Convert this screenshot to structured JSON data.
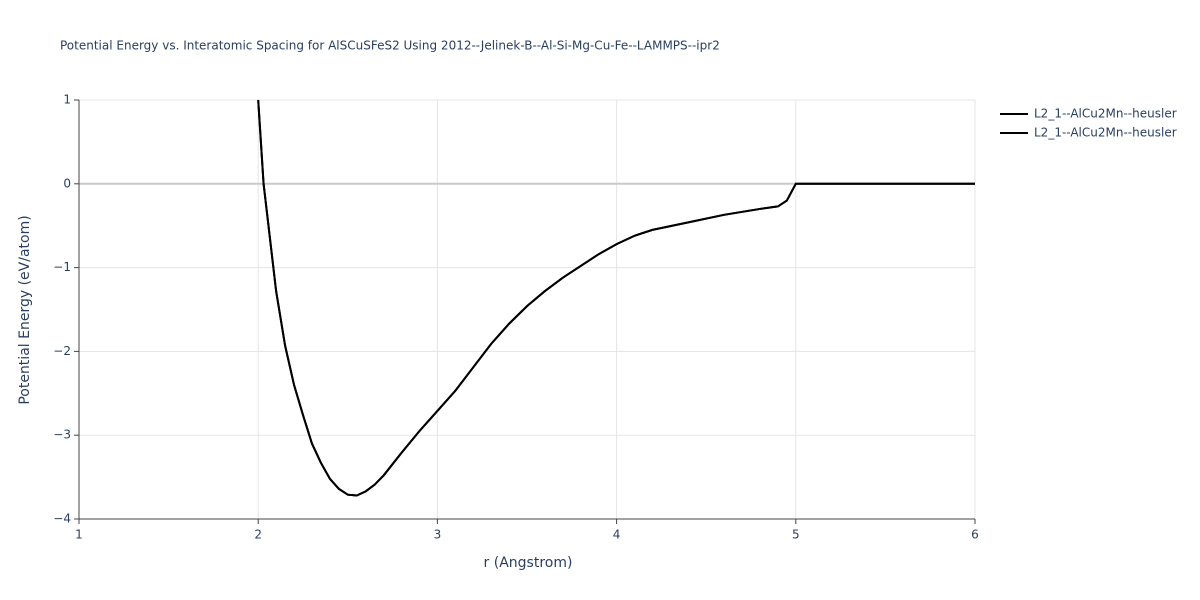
{
  "chart_data": {
    "type": "line",
    "title": "Potential Energy vs. Interatomic Spacing for AlSCuSFeS2 Using 2012--Jelinek-B--Al-Si-Mg-Cu-Fe--LAMMPS--ipr2",
    "x_label": "r (Angstrom)",
    "y_label": "Potential Energy (eV/atom)",
    "x": [
      2.0,
      2.03,
      2.1,
      2.15,
      2.2,
      2.25,
      2.3,
      2.35,
      2.4,
      2.45,
      2.5,
      2.55,
      2.6,
      2.65,
      2.7,
      2.8,
      2.9,
      3.0,
      3.1,
      3.2,
      3.3,
      3.4,
      3.5,
      3.6,
      3.7,
      3.8,
      3.9,
      4.0,
      4.1,
      4.2,
      4.4,
      4.6,
      4.8,
      4.9,
      4.95,
      5.0,
      5.5,
      6.0
    ],
    "series": [
      {
        "name": "L2_1--AlCu2Mn--heusler",
        "color": "#000000",
        "values": [
          1.0,
          0.0,
          -1.28,
          -1.93,
          -2.4,
          -2.76,
          -3.1,
          -3.33,
          -3.52,
          -3.64,
          -3.71,
          -3.72,
          -3.67,
          -3.59,
          -3.48,
          -3.21,
          -2.95,
          -2.71,
          -2.47,
          -2.19,
          -1.91,
          -1.67,
          -1.46,
          -1.28,
          -1.12,
          -0.98,
          -0.84,
          -0.72,
          -0.62,
          -0.55,
          -0.46,
          -0.37,
          -0.3,
          -0.27,
          -0.2,
          0.0,
          0.0,
          0.0
        ]
      },
      {
        "name": "L2_1--AlCu2Mn--heusler",
        "color": "#000000",
        "values": [
          1.0,
          0.0,
          -1.28,
          -1.93,
          -2.4,
          -2.76,
          -3.1,
          -3.33,
          -3.52,
          -3.64,
          -3.71,
          -3.72,
          -3.67,
          -3.59,
          -3.48,
          -3.21,
          -2.95,
          -2.71,
          -2.47,
          -2.19,
          -1.91,
          -1.67,
          -1.46,
          -1.28,
          -1.12,
          -0.98,
          -0.84,
          -0.72,
          -0.62,
          -0.55,
          -0.46,
          -0.37,
          -0.3,
          -0.27,
          -0.2,
          0.0,
          0.0,
          0.0
        ]
      }
    ],
    "xlim": [
      1,
      6
    ],
    "xticks": [
      1,
      2,
      3,
      4,
      5,
      6
    ],
    "ylim": [
      -4,
      1
    ],
    "yticks": [
      {
        "value": -4,
        "label": "−4"
      },
      {
        "value": -3,
        "label": "−3"
      },
      {
        "value": -2,
        "label": "−2"
      },
      {
        "value": -1,
        "label": "−1"
      },
      0,
      1
    ],
    "grid": true
  }
}
